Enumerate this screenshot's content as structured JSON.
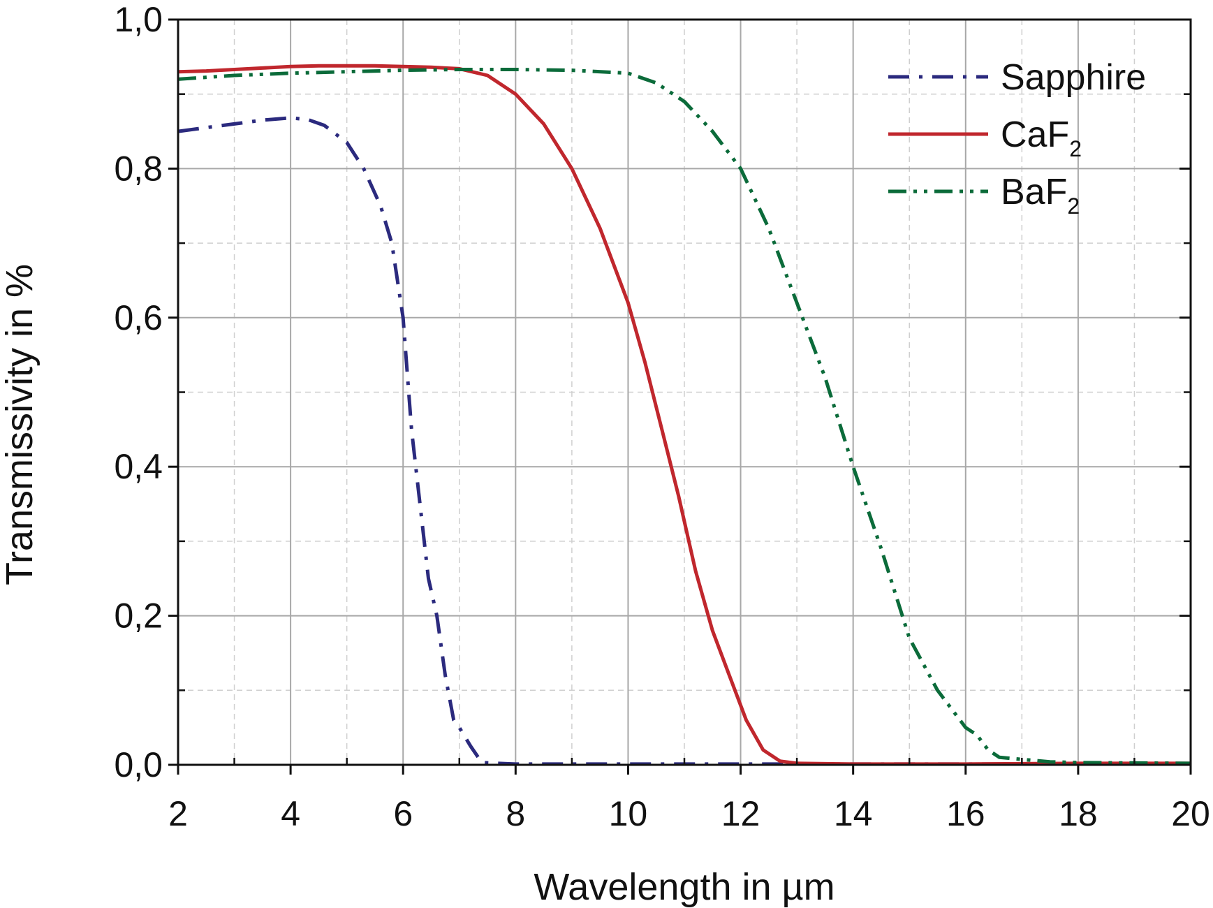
{
  "chart_data": {
    "type": "line",
    "xlabel": "Wavelength in µm",
    "ylabel": "Transmissivity in %",
    "xlim": [
      2,
      20
    ],
    "ylim": [
      0,
      1
    ],
    "x_ticks": [
      2,
      4,
      6,
      8,
      10,
      12,
      14,
      16,
      18,
      20
    ],
    "x_tick_labels": [
      "2",
      "4",
      "6",
      "8",
      "10",
      "12",
      "14",
      "16",
      "18",
      "20"
    ],
    "y_ticks": [
      0,
      0.2,
      0.4,
      0.6,
      0.8,
      1.0
    ],
    "y_tick_labels": [
      "0,0",
      "0,2",
      "0,4",
      "0,6",
      "0,8",
      "1,0"
    ],
    "grid": true,
    "minor_grid": true,
    "legend_position": "top-right",
    "series": [
      {
        "name": "Sapphire",
        "legend_text": "Sapphire",
        "legend_subscript": "",
        "color": "#2b2a7e",
        "dash": "dash-dot",
        "x": [
          2,
          2.5,
          3,
          3.5,
          4,
          4.3,
          4.6,
          5,
          5.3,
          5.6,
          5.8,
          6.0,
          6.15,
          6.3,
          6.45,
          6.6,
          6.75,
          6.9,
          7.0,
          7.2,
          7.4,
          8,
          10,
          12,
          14,
          16,
          18,
          20
        ],
        "y": [
          0.85,
          0.855,
          0.86,
          0.865,
          0.868,
          0.866,
          0.858,
          0.835,
          0.8,
          0.75,
          0.7,
          0.6,
          0.45,
          0.35,
          0.25,
          0.2,
          0.12,
          0.06,
          0.05,
          0.025,
          0.003,
          0.001,
          0.001,
          0.001,
          0.001,
          0.001,
          0.001,
          0.001
        ]
      },
      {
        "name": "CaF2",
        "legend_text": "CaF",
        "legend_subscript": "2",
        "color": "#c0272d",
        "dash": "solid",
        "x": [
          2,
          2.5,
          3,
          3.5,
          4,
          4.5,
          5,
          5.5,
          6,
          6.5,
          7,
          7.5,
          8,
          8.5,
          9,
          9.5,
          10,
          10.3,
          10.6,
          10.9,
          11.2,
          11.5,
          11.8,
          12.1,
          12.4,
          12.7,
          13,
          14,
          16,
          18,
          20
        ],
        "y": [
          0.93,
          0.931,
          0.933,
          0.935,
          0.937,
          0.938,
          0.938,
          0.938,
          0.937,
          0.936,
          0.934,
          0.925,
          0.9,
          0.86,
          0.8,
          0.72,
          0.62,
          0.54,
          0.45,
          0.36,
          0.26,
          0.18,
          0.12,
          0.06,
          0.02,
          0.005,
          0.002,
          0.001,
          0.001,
          0.002,
          0.002
        ]
      },
      {
        "name": "BaF2",
        "legend_text": "BaF",
        "legend_subscript": "2",
        "color": "#0b6b3a",
        "dash": "dash-dot-dot",
        "x": [
          2,
          3,
          4,
          5,
          6,
          7,
          8,
          9,
          10,
          10.5,
          11,
          11.5,
          12,
          12.5,
          13,
          13.5,
          14,
          14.5,
          15,
          15.5,
          16,
          16.2,
          16.4,
          16.6,
          16.9,
          17.5,
          18,
          20
        ],
        "y": [
          0.92,
          0.925,
          0.928,
          0.93,
          0.932,
          0.933,
          0.933,
          0.932,
          0.928,
          0.915,
          0.89,
          0.85,
          0.8,
          0.72,
          0.62,
          0.52,
          0.4,
          0.29,
          0.17,
          0.1,
          0.05,
          0.04,
          0.02,
          0.01,
          0.008,
          0.004,
          0.003,
          0.002
        ]
      }
    ]
  }
}
